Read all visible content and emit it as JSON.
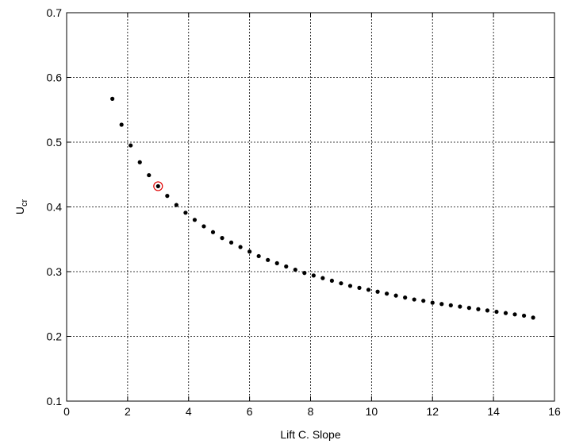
{
  "chart_data": {
    "type": "scatter",
    "title": "",
    "xlabel": "Lift C. Slope",
    "ylabel_main": "U",
    "ylabel_sub": "cr",
    "xlim": [
      0,
      16
    ],
    "ylim": [
      0.1,
      0.7
    ],
    "xticks": [
      0,
      2,
      4,
      6,
      8,
      10,
      12,
      14,
      16
    ],
    "xtick_labels": [
      "0",
      "2",
      "4",
      "6",
      "8",
      "10",
      "12",
      "14",
      "16"
    ],
    "yticks": [
      0.1,
      0.2,
      0.3,
      0.4,
      0.5,
      0.6,
      0.7
    ],
    "ytick_labels": [
      "0.1",
      "0.2",
      "0.3",
      "0.4",
      "0.5",
      "0.6",
      "0.7"
    ],
    "grid": true,
    "marker_color": "#000000",
    "highlight_color": "#e00000",
    "series": [
      {
        "x": [
          1.5,
          1.8,
          2.1,
          2.4,
          2.7,
          3.0,
          3.3,
          3.6,
          3.9,
          4.2,
          4.5,
          4.8,
          5.1,
          5.4,
          5.7,
          6.0,
          6.3,
          6.6,
          6.9,
          7.2,
          7.5,
          7.8,
          8.1,
          8.4,
          8.7,
          9.0,
          9.3,
          9.6,
          9.9,
          10.2,
          10.5,
          10.8,
          11.1,
          11.4,
          11.7,
          12.0,
          12.3,
          12.6,
          12.9,
          13.2,
          13.5,
          13.8,
          14.1,
          14.4,
          14.7,
          15.0,
          15.3
        ],
        "y": [
          0.567,
          0.527,
          0.495,
          0.469,
          0.449,
          0.432,
          0.417,
          0.403,
          0.391,
          0.38,
          0.37,
          0.361,
          0.352,
          0.345,
          0.338,
          0.331,
          0.324,
          0.318,
          0.313,
          0.308,
          0.303,
          0.298,
          0.294,
          0.29,
          0.286,
          0.282,
          0.278,
          0.275,
          0.272,
          0.269,
          0.266,
          0.263,
          0.26,
          0.257,
          0.255,
          0.252,
          0.25,
          0.248,
          0.246,
          0.244,
          0.242,
          0.24,
          0.238,
          0.236,
          0.234,
          0.232,
          0.229
        ]
      }
    ],
    "highlight": {
      "x": 3.0,
      "y": 0.432
    }
  }
}
